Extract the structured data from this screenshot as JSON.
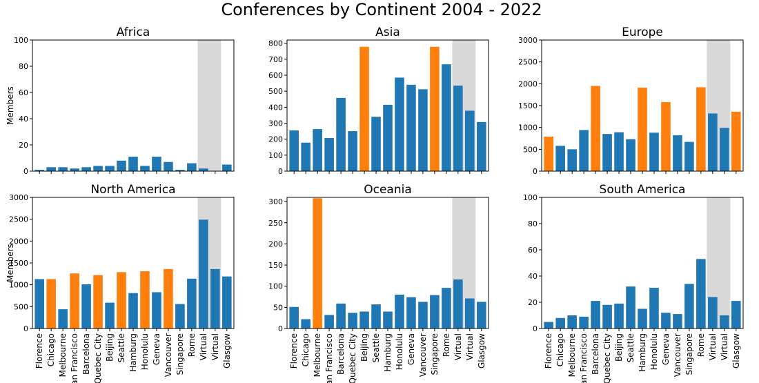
{
  "title": "Conferences by Continent 2004 - 2022",
  "colors": {
    "normal": "#1f77b4",
    "highlight": "#ff7f0e",
    "virtual_band": "#d9d9d9"
  },
  "chart_data": [
    {
      "type": "bar",
      "title": "Africa",
      "ylabel": "Members",
      "ylim": [
        0,
        100
      ],
      "yticks": [
        0,
        20,
        40,
        60,
        80,
        100
      ],
      "categories": [
        "Florence",
        "Chicago",
        "Melbourne",
        "San Francisco",
        "Barcelona",
        "Quebec City",
        "Beijing",
        "Seattle",
        "Hamburg",
        "Honolulu",
        "Geneva",
        "Vancouver",
        "Singapore",
        "Rome",
        "Virtual",
        "Virtual",
        "Glasgow"
      ],
      "values": [
        1,
        3,
        3,
        2,
        3,
        4,
        4,
        8,
        11,
        4,
        11,
        7,
        1,
        6,
        2,
        0,
        5
      ],
      "highlight": [],
      "show_xticks": false
    },
    {
      "type": "bar",
      "title": "Asia",
      "ylabel": "",
      "ylim": [
        0,
        820
      ],
      "yticks": [
        0,
        100,
        200,
        300,
        400,
        500,
        600,
        700,
        800
      ],
      "categories": [
        "Florence",
        "Chicago",
        "Melbourne",
        "San Francisco",
        "Barcelona",
        "Quebec City",
        "Beijing",
        "Seattle",
        "Hamburg",
        "Honolulu",
        "Geneva",
        "Vancouver",
        "Singapore",
        "Rome",
        "Virtual",
        "Virtual",
        "Glasgow"
      ],
      "values": [
        255,
        178,
        263,
        207,
        458,
        250,
        778,
        340,
        415,
        585,
        540,
        512,
        778,
        668,
        535,
        378,
        307
      ],
      "highlight": [
        6,
        12
      ],
      "show_xticks": false
    },
    {
      "type": "bar",
      "title": "Europe",
      "ylabel": "",
      "ylim": [
        0,
        3000
      ],
      "yticks": [
        0,
        500,
        1000,
        1500,
        2000,
        2500,
        3000
      ],
      "categories": [
        "Florence",
        "Chicago",
        "Melbourne",
        "San Francisco",
        "Barcelona",
        "Quebec City",
        "Beijing",
        "Seattle",
        "Hamburg",
        "Honolulu",
        "Geneva",
        "Vancouver",
        "Singapore",
        "Rome",
        "Virtual",
        "Virtual",
        "Glasgow"
      ],
      "values": [
        790,
        580,
        500,
        940,
        1950,
        850,
        890,
        730,
        1910,
        880,
        1580,
        820,
        670,
        1920,
        1320,
        990,
        1360
      ],
      "highlight": [
        0,
        4,
        8,
        10,
        13,
        16
      ],
      "show_xticks": false
    },
    {
      "type": "bar",
      "title": "North America",
      "ylabel": "Members",
      "ylim": [
        0,
        3000
      ],
      "yticks": [
        0,
        500,
        1000,
        1500,
        2000,
        2500,
        3000
      ],
      "categories": [
        "Florence",
        "Chicago",
        "Melbourne",
        "San Francisco",
        "Barcelona",
        "Quebec City",
        "Beijing",
        "Seattle",
        "Hamburg",
        "Honolulu",
        "Geneva",
        "Vancouver",
        "Singapore",
        "Rome",
        "Virtual",
        "Virtual",
        "Glasgow"
      ],
      "values": [
        1130,
        1130,
        440,
        1260,
        1010,
        1220,
        590,
        1290,
        810,
        1310,
        830,
        1360,
        560,
        1140,
        2490,
        1360,
        1190
      ],
      "highlight": [
        1,
        3,
        5,
        7,
        9,
        11
      ],
      "show_xticks": true
    },
    {
      "type": "bar",
      "title": "Oceania",
      "ylabel": "",
      "ylim": [
        0,
        310
      ],
      "yticks": [
        0,
        50,
        100,
        150,
        200,
        250,
        300
      ],
      "categories": [
        "Florence",
        "Chicago",
        "Melbourne",
        "San Francisco",
        "Barcelona",
        "Quebec City",
        "Beijing",
        "Seattle",
        "Hamburg",
        "Honolulu",
        "Geneva",
        "Vancouver",
        "Singapore",
        "Rome",
        "Virtual",
        "Virtual",
        "Glasgow"
      ],
      "values": [
        51,
        22,
        308,
        32,
        59,
        37,
        40,
        57,
        40,
        80,
        74,
        63,
        79,
        96,
        116,
        71,
        63
      ],
      "highlight": [
        2
      ],
      "show_xticks": true
    },
    {
      "type": "bar",
      "title": "South America",
      "ylabel": "",
      "ylim": [
        0,
        100
      ],
      "yticks": [
        0,
        20,
        40,
        60,
        80,
        100
      ],
      "categories": [
        "Florence",
        "Chicago",
        "Melbourne",
        "San Francisco",
        "Barcelona",
        "Quebec City",
        "Beijing",
        "Seattle",
        "Hamburg",
        "Honolulu",
        "Geneva",
        "Vancouver",
        "Singapore",
        "Rome",
        "Virtual",
        "Virtual",
        "Glasgow"
      ],
      "values": [
        5,
        8,
        10,
        9,
        21,
        18,
        19,
        32,
        15,
        31,
        12,
        11,
        34,
        53,
        24,
        10,
        21
      ],
      "highlight": [],
      "show_xticks": true
    }
  ]
}
